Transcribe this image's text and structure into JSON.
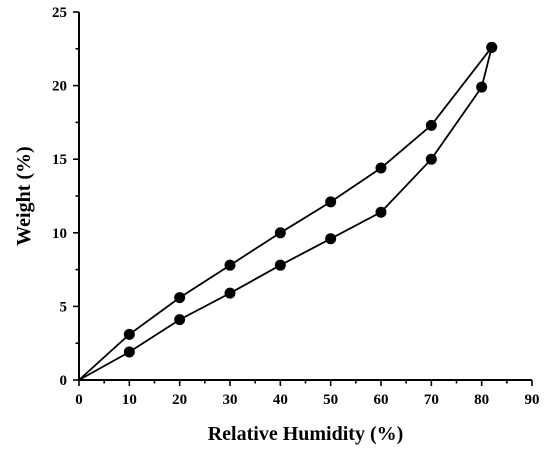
{
  "chart_data": {
    "type": "line",
    "xlabel": "Relative Humidity (%)",
    "ylabel": "Weight (%)",
    "xlim": [
      0,
      90
    ],
    "ylim": [
      0,
      25
    ],
    "xticks": [
      0,
      10,
      20,
      30,
      40,
      50,
      60,
      70,
      80,
      90
    ],
    "yticks": [
      0,
      5,
      10,
      15,
      20,
      25
    ],
    "grid": false,
    "legend": "none",
    "marker": "filled-circle",
    "color": "#000000",
    "series": [
      {
        "x": [
          0,
          10,
          20,
          30,
          40,
          50,
          60,
          70,
          82
        ],
        "y": [
          0,
          3.1,
          5.6,
          7.8,
          10.0,
          12.1,
          14.4,
          17.3,
          22.6
        ]
      },
      {
        "x": [
          0,
          10,
          20,
          30,
          40,
          50,
          60,
          70,
          80,
          82
        ],
        "y": [
          0,
          1.9,
          4.1,
          5.9,
          7.8,
          9.6,
          11.4,
          15.0,
          19.9,
          22.6
        ]
      }
    ]
  }
}
